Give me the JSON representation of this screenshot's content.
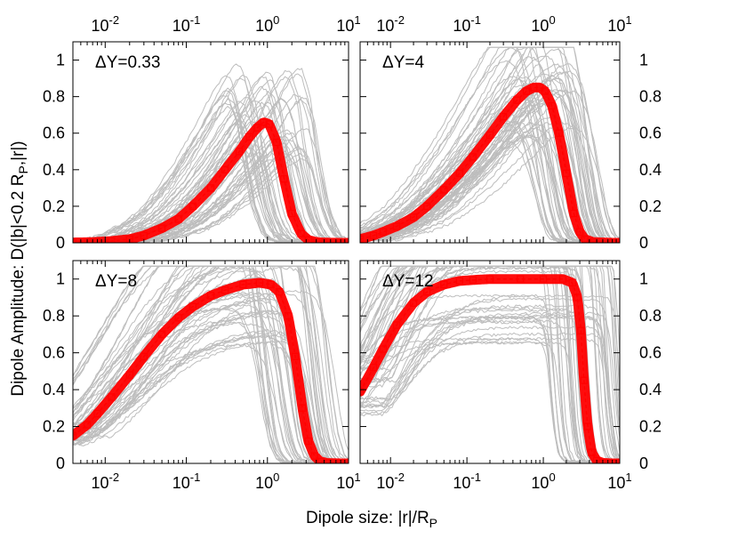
{
  "figure": {
    "xlabel": "Dipole size: |r|/R",
    "xlabel_sub": "P",
    "ylabel": "Dipole Amplitude: D(|b|<0.2 R",
    "ylabel_sub": "P",
    "ylabel_tail": ",|r|)"
  },
  "colors": {
    "mean": "#ff0000",
    "samples": "#bdbdbd",
    "frame": "#000000"
  },
  "chart_data": [
    {
      "type": "line",
      "panel": "top-left",
      "annotation": "ΔY=0.33",
      "xscale": "log",
      "xlim": [
        0.004,
        10
      ],
      "ylim": [
        0,
        1.1
      ],
      "xticks": [
        "10-2",
        "10-1",
        "100",
        "101"
      ],
      "yticks": [
        "0",
        "0.2",
        "0.4",
        "0.6",
        "0.8",
        "1"
      ],
      "ytick_side": "left",
      "xtick_side": "top",
      "mean_series": {
        "x": [
          0.004,
          0.006,
          0.008,
          0.012,
          0.02,
          0.03,
          0.05,
          0.08,
          0.12,
          0.2,
          0.3,
          0.45,
          0.6,
          0.75,
          0.9,
          1.05,
          1.3,
          1.6,
          2.0,
          2.6,
          3.2,
          4.0,
          5,
          8
        ],
        "y": [
          0.002,
          0.003,
          0.005,
          0.01,
          0.02,
          0.04,
          0.08,
          0.13,
          0.2,
          0.3,
          0.4,
          0.5,
          0.58,
          0.63,
          0.66,
          0.65,
          0.55,
          0.35,
          0.16,
          0.05,
          0.015,
          0.005,
          0.001,
          0.0
        ]
      }
    },
    {
      "type": "line",
      "panel": "top-right",
      "annotation": "ΔY=4",
      "xscale": "log",
      "xlim": [
        0.004,
        10
      ],
      "ylim": [
        0,
        1.1
      ],
      "xticks": [
        "10-2",
        "10-1",
        "100",
        "101"
      ],
      "yticks": [
        "0",
        "0.2",
        "0.4",
        "0.6",
        "0.8",
        "1"
      ],
      "ytick_side": "right",
      "xtick_side": "top",
      "mean_series": {
        "x": [
          0.004,
          0.006,
          0.008,
          0.012,
          0.02,
          0.03,
          0.05,
          0.08,
          0.12,
          0.2,
          0.3,
          0.45,
          0.6,
          0.75,
          0.9,
          1.05,
          1.3,
          1.6,
          2.0,
          2.5,
          3.0,
          3.5,
          4.5,
          8
        ],
        "y": [
          0.02,
          0.04,
          0.06,
          0.09,
          0.14,
          0.2,
          0.29,
          0.38,
          0.47,
          0.59,
          0.69,
          0.78,
          0.83,
          0.85,
          0.85,
          0.83,
          0.75,
          0.6,
          0.38,
          0.16,
          0.06,
          0.02,
          0.004,
          0.0
        ]
      }
    },
    {
      "type": "line",
      "panel": "bottom-left",
      "annotation": "ΔY=8",
      "xscale": "log",
      "xlim": [
        0.004,
        10
      ],
      "ylim": [
        0,
        1.1
      ],
      "xticks": [
        "10-2",
        "10-1",
        "100",
        "101"
      ],
      "yticks": [
        "0",
        "0.2",
        "0.4",
        "0.6",
        "0.8",
        "1"
      ],
      "ytick_side": "left",
      "xtick_side": "bottom",
      "mean_series": {
        "x": [
          0.004,
          0.006,
          0.008,
          0.012,
          0.02,
          0.03,
          0.05,
          0.08,
          0.12,
          0.2,
          0.3,
          0.5,
          0.8,
          1.1,
          1.4,
          1.8,
          2.2,
          2.7,
          3.2,
          3.8,
          4.5,
          5.5,
          8
        ],
        "y": [
          0.15,
          0.21,
          0.27,
          0.36,
          0.48,
          0.58,
          0.7,
          0.79,
          0.85,
          0.91,
          0.94,
          0.97,
          0.98,
          0.97,
          0.93,
          0.8,
          0.58,
          0.3,
          0.12,
          0.04,
          0.01,
          0.002,
          0.0
        ]
      }
    },
    {
      "type": "line",
      "panel": "bottom-right",
      "annotation": "ΔY=12",
      "xscale": "log",
      "xlim": [
        0.004,
        10
      ],
      "ylim": [
        0,
        1.1
      ],
      "xticks": [
        "10-2",
        "10-1",
        "100",
        "101"
      ],
      "yticks": [
        "0",
        "0.2",
        "0.4",
        "0.6",
        "0.8",
        "1"
      ],
      "ytick_side": "right",
      "xtick_side": "bottom",
      "mean_series": {
        "x": [
          0.004,
          0.006,
          0.008,
          0.012,
          0.02,
          0.03,
          0.05,
          0.08,
          0.12,
          0.2,
          0.5,
          1.0,
          1.8,
          2.4,
          2.8,
          3.1,
          3.4,
          3.8,
          4.3,
          5.0,
          6,
          8
        ],
        "y": [
          0.39,
          0.52,
          0.62,
          0.75,
          0.87,
          0.93,
          0.97,
          0.99,
          0.995,
          1.0,
          1.0,
          1.0,
          1.0,
          0.98,
          0.9,
          0.72,
          0.45,
          0.2,
          0.06,
          0.015,
          0.003,
          0.0
        ]
      }
    }
  ]
}
